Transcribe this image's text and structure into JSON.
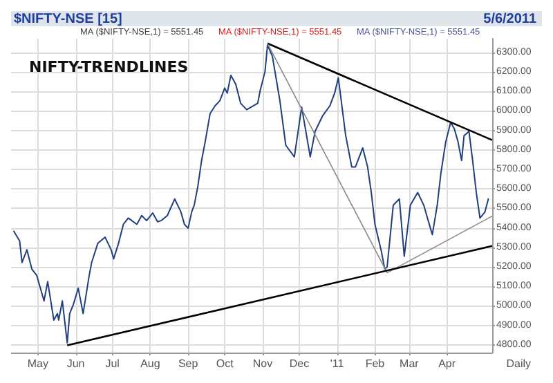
{
  "chart_data": {
    "type": "line",
    "title": "NIFTY-TRENDLINES",
    "annotations": [
      "$NIFTY-NSE [15]",
      "5/6/2011",
      "MA ($NIFTY-NSE,1) = 5551.45",
      "MA ($NIFTY-NSE,1) = 5551.45",
      "MA ($NIFTY-NSE,1) = 5551.45",
      "Daily"
    ],
    "xlim": [
      "2010-04-09",
      "2011-05-08"
    ],
    "xticks": [
      {
        "value": "2010-05-01",
        "label": "May"
      },
      {
        "value": "2010-06-01",
        "label": "Jun"
      },
      {
        "value": "2010-07-01",
        "label": "Jul"
      },
      {
        "value": "2010-08-01",
        "label": "Aug"
      },
      {
        "value": "2010-09-01",
        "label": "Sep"
      },
      {
        "value": "2010-10-01",
        "label": "Oct"
      },
      {
        "value": "2010-11-01",
        "label": "Nov"
      },
      {
        "value": "2010-12-01",
        "label": "Dec"
      },
      {
        "value": "2011-01-01",
        "label": "'11"
      },
      {
        "value": "2011-02-01",
        "label": "Feb"
      },
      {
        "value": "2011-03-01",
        "label": "Mar"
      },
      {
        "value": "2011-04-01",
        "label": "Apr"
      }
    ],
    "ylim": [
      4760,
      6370
    ],
    "yticks": [
      {
        "value": 4800,
        "label": "4800.00"
      },
      {
        "value": 4900,
        "label": "4900.00"
      },
      {
        "value": 5000,
        "label": "5000.00"
      },
      {
        "value": 5100,
        "label": "5100.00"
      },
      {
        "value": 5200,
        "label": "5200.00"
      },
      {
        "value": 5300,
        "label": "5300.00"
      },
      {
        "value": 5400,
        "label": "5400.00"
      },
      {
        "value": 5500,
        "label": "5500.00"
      },
      {
        "value": 5600,
        "label": "5600.00"
      },
      {
        "value": 5700,
        "label": "5700.00"
      },
      {
        "value": 5800,
        "label": "5800.00"
      },
      {
        "value": 5900,
        "label": "5900.00"
      },
      {
        "value": 6000,
        "label": "6000.00"
      },
      {
        "value": 6100,
        "label": "6100.00"
      },
      {
        "value": 6200,
        "label": "6200.00"
      },
      {
        "value": 6300,
        "label": "6300.00"
      }
    ],
    "grid": true,
    "marker": "none",
    "line_style": "solid",
    "series": [
      {
        "color": "#1f3f7f",
        "x": [
          "2010-04-11",
          "2010-04-16",
          "2010-04-18",
          "2010-04-22",
          "2010-04-26",
          "2010-04-30",
          "2010-05-06",
          "2010-05-09",
          "2010-05-14",
          "2010-05-17",
          "2010-05-18",
          "2010-05-21",
          "2010-05-25",
          "2010-05-27",
          "2010-05-30",
          "2010-06-03",
          "2010-06-07",
          "2010-06-12",
          "2010-06-14",
          "2010-06-19",
          "2010-06-25",
          "2010-06-30",
          "2010-07-02",
          "2010-07-06",
          "2010-07-10",
          "2010-07-14",
          "2010-07-21",
          "2010-07-25",
          "2010-07-29",
          "2010-08-03",
          "2010-08-07",
          "2010-08-10",
          "2010-08-15",
          "2010-08-21",
          "2010-08-26",
          "2010-08-29",
          "2010-09-01",
          "2010-09-04",
          "2010-09-06",
          "2010-09-09",
          "2010-09-12",
          "2010-09-15",
          "2010-09-19",
          "2010-09-23",
          "2010-09-27",
          "2010-10-01",
          "2010-10-03",
          "2010-10-06",
          "2010-10-10",
          "2010-10-14",
          "2010-10-19",
          "2010-10-28",
          "2010-10-30",
          "2010-11-03",
          "2010-11-05",
          "2010-11-09",
          "2010-11-15",
          "2010-11-20",
          "2010-11-27",
          "2010-12-03",
          "2010-12-10",
          "2010-12-14",
          "2010-12-20",
          "2010-12-26",
          "2010-12-30",
          "2011-01-02",
          "2011-01-08",
          "2011-01-13",
          "2011-01-16",
          "2011-01-22",
          "2011-01-26",
          "2011-01-29",
          "2011-02-01",
          "2011-02-06",
          "2011-02-09",
          "2011-02-11",
          "2011-02-16",
          "2011-02-21",
          "2011-02-25",
          "2011-03-02",
          "2011-03-08",
          "2011-03-13",
          "2011-03-16",
          "2011-03-20",
          "2011-03-24",
          "2011-03-27",
          "2011-03-31",
          "2011-04-04",
          "2011-04-07",
          "2011-04-10",
          "2011-04-13",
          "2011-04-15",
          "2011-04-19",
          "2011-04-22",
          "2011-04-25",
          "2011-04-28",
          "2011-05-02",
          "2011-05-05"
        ],
        "values": [
          5385,
          5333,
          5222,
          5287,
          5189,
          5156,
          5025,
          5124,
          4927,
          4960,
          4927,
          5025,
          4810,
          4960,
          5006,
          5091,
          4960,
          5156,
          5222,
          5320,
          5352,
          5287,
          5241,
          5320,
          5418,
          5450,
          5418,
          5463,
          5437,
          5476,
          5431,
          5437,
          5463,
          5548,
          5483,
          5418,
          5398,
          5483,
          5516,
          5614,
          5744,
          5842,
          5986,
          6025,
          6052,
          6117,
          6091,
          6182,
          6137,
          6039,
          6006,
          6039,
          6104,
          6202,
          6338,
          6280,
          6058,
          5823,
          5764,
          6019,
          5764,
          5895,
          5973,
          6025,
          6091,
          6170,
          5875,
          5712,
          5712,
          5810,
          5712,
          5581,
          5418,
          5287,
          5189,
          5200,
          5516,
          5548,
          5254,
          5516,
          5581,
          5516,
          5450,
          5365,
          5516,
          5679,
          5842,
          5941,
          5908,
          5842,
          5745,
          5873,
          5895,
          5745,
          5581,
          5450,
          5480,
          5551
        ]
      },
      {
        "color": "#000000",
        "x": [
          "2010-11-05",
          "2011-05-08"
        ],
        "values": [
          6346,
          5850
        ]
      },
      {
        "color": "#888888",
        "x": [
          "2010-11-05",
          "2011-02-11"
        ],
        "values": [
          6346,
          5169
        ]
      },
      {
        "color": "#888888",
        "x": [
          "2011-02-11",
          "2011-05-08"
        ],
        "values": [
          5169,
          5460
        ]
      },
      {
        "color": "#000000",
        "x": [
          "2010-05-25",
          "2011-05-08"
        ],
        "values": [
          4797,
          5307
        ]
      }
    ]
  }
}
